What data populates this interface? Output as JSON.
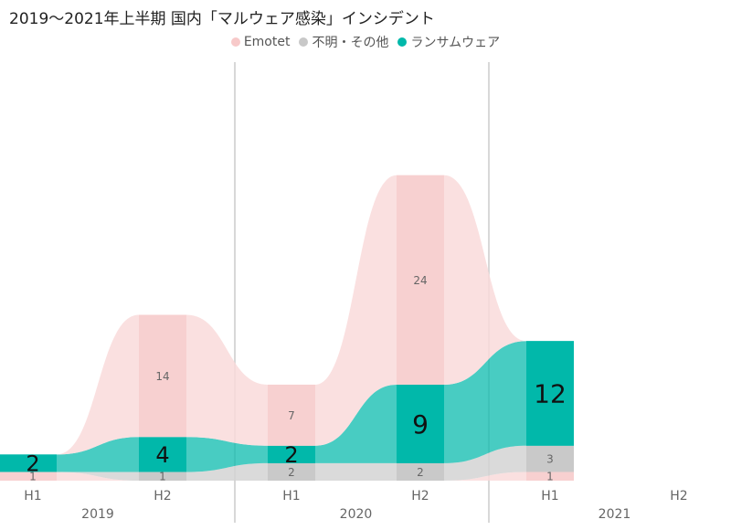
{
  "chart_data": {
    "type": "ribbon",
    "title": "2019～2021年上半期 国内「マルウェア感染」インシデント",
    "legend_position": "top",
    "categories": [
      "H1",
      "H2",
      "H1",
      "H2",
      "H1",
      "H2"
    ],
    "years": [
      {
        "label": "2019",
        "span": [
          0,
          1
        ]
      },
      {
        "label": "2020",
        "span": [
          2,
          3
        ]
      },
      {
        "label": "2021",
        "span": [
          4,
          5
        ]
      }
    ],
    "series": [
      {
        "name": "Emotet",
        "color": "#f9dada",
        "values": [
          1,
          0,
          0,
          0,
          1,
          null
        ]
      },
      {
        "name": "不明・その他",
        "color": "#d4d4d4",
        "values": [
          0,
          1,
          2,
          2,
          3,
          null
        ]
      },
      {
        "name": "ランサムウェア",
        "color": "#01b8aa",
        "values": [
          2,
          4,
          2,
          9,
          12,
          null
        ]
      },
      {
        "name": "Emotet",
        "color": "#f9dada",
        "values": [
          0,
          14,
          7,
          24,
          0,
          null
        ]
      }
    ],
    "legend": [
      {
        "name": "Emotet",
        "color": "#f7c9c9"
      },
      {
        "name": "不明・その他",
        "color": "#c8c8c8"
      },
      {
        "name": "ランサムウェア",
        "color": "#01b8aa"
      }
    ]
  }
}
